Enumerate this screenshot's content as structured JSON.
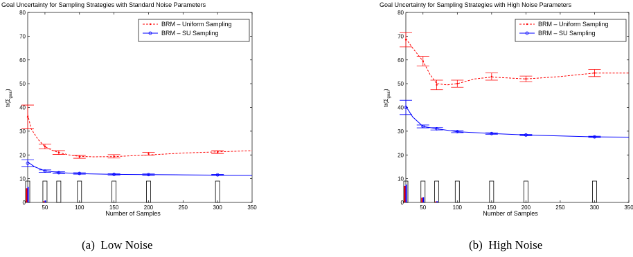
{
  "captions": [
    "(a)  Low Noise",
    "(b)  High Noise"
  ],
  "chart_data": [
    {
      "type": "line",
      "title": "Goal Uncertainty for Sampling Strategies with Standard Noise Parameters",
      "xlabel": "Number of Samples",
      "ylabel": "tr(Σ_goal)",
      "xlim": [
        25,
        350
      ],
      "ylim": [
        0,
        80
      ],
      "xticks": [
        50,
        100,
        150,
        200,
        250,
        300,
        350
      ],
      "yticks": [
        0,
        10,
        20,
        30,
        40,
        50,
        60,
        70,
        80
      ],
      "grid": false,
      "legend_position": "top-right",
      "series": [
        {
          "name": "BRM – Uniform Sampling",
          "color": "#ff0000",
          "style": "dashed",
          "points": [
            {
              "x": 25,
              "y": 36,
              "err": 5
            },
            {
              "x": 50,
              "y": 23.5,
              "err": 1
            },
            {
              "x": 70,
              "y": 21,
              "err": 0.8
            },
            {
              "x": 100,
              "y": 19.2,
              "err": 0.6
            },
            {
              "x": 150,
              "y": 19.4,
              "err": 0.7
            },
            {
              "x": 200,
              "y": 20.5,
              "err": 0.6
            },
            {
              "x": 300,
              "y": 21.2,
              "err": 0.6
            }
          ],
          "fit": [
            [
              25,
              37
            ],
            [
              30,
              31
            ],
            [
              40,
              26.5
            ],
            [
              50,
              23.5
            ],
            [
              60,
              22
            ],
            [
              70,
              21
            ],
            [
              85,
              20
            ],
            [
              100,
              19.4
            ],
            [
              120,
              19.2
            ],
            [
              150,
              19.3
            ],
            [
              200,
              20
            ],
            [
              250,
              20.8
            ],
            [
              300,
              21.3
            ],
            [
              350,
              21.8
            ]
          ]
        },
        {
          "name": "BRM – SU Sampling",
          "color": "#0000ff",
          "style": "solid",
          "points": [
            {
              "x": 25,
              "y": 16.5,
              "err": 1.5
            },
            {
              "x": 50,
              "y": 13.2,
              "err": 0.5
            },
            {
              "x": 70,
              "y": 12.5,
              "err": 0.4
            },
            {
              "x": 100,
              "y": 12.2,
              "err": 0.3
            },
            {
              "x": 150,
              "y": 11.8,
              "err": 0.3
            },
            {
              "x": 200,
              "y": 11.7,
              "err": 0.3
            },
            {
              "x": 300,
              "y": 11.6,
              "err": 0.2
            }
          ],
          "fit": [
            [
              25,
              17
            ],
            [
              35,
              15
            ],
            [
              50,
              13.3
            ],
            [
              70,
              12.6
            ],
            [
              100,
              12.1
            ],
            [
              150,
              11.8
            ],
            [
              200,
              11.7
            ],
            [
              250,
              11.6
            ],
            [
              300,
              11.5
            ],
            [
              350,
              11.4
            ]
          ]
        }
      ],
      "bars": [
        {
          "x": 25,
          "height": 9,
          "red": 6,
          "blue": 6.5
        },
        {
          "x": 50,
          "height": 9,
          "red": 0.5,
          "blue": 0.8
        },
        {
          "x": 70,
          "height": 9,
          "red": 0,
          "blue": 0
        },
        {
          "x": 100,
          "height": 9,
          "red": 0,
          "blue": 0
        },
        {
          "x": 150,
          "height": 9,
          "red": 0,
          "blue": 0
        },
        {
          "x": 200,
          "height": 9,
          "red": 0,
          "blue": 0
        },
        {
          "x": 300,
          "height": 9,
          "red": 0,
          "blue": 0
        }
      ]
    },
    {
      "type": "line",
      "title": "Goal Uncertainty for Sampling Strategies with High Noise Parameters",
      "xlabel": "Number of Samples",
      "ylabel": "tr(Σ_goal)",
      "xlim": [
        25,
        350
      ],
      "ylim": [
        0,
        80
      ],
      "xticks": [
        50,
        100,
        150,
        200,
        250,
        300,
        350
      ],
      "yticks": [
        0,
        10,
        20,
        30,
        40,
        50,
        60,
        70,
        80
      ],
      "grid": false,
      "legend_position": "top-right",
      "series": [
        {
          "name": "BRM – Uniform Sampling",
          "color": "#ff0000",
          "style": "dashed",
          "points": [
            {
              "x": 25,
              "y": 68.5,
              "err": 3
            },
            {
              "x": 50,
              "y": 59.5,
              "err": 2
            },
            {
              "x": 70,
              "y": 49.5,
              "err": 2
            },
            {
              "x": 100,
              "y": 50,
              "err": 1.5
            },
            {
              "x": 150,
              "y": 53,
              "err": 1.5
            },
            {
              "x": 200,
              "y": 52,
              "err": 1.2
            },
            {
              "x": 300,
              "y": 54.5,
              "err": 1.5
            }
          ],
          "fit": [
            [
              25,
              69
            ],
            [
              35,
              65
            ],
            [
              50,
              59.5
            ],
            [
              60,
              54
            ],
            [
              70,
              50
            ],
            [
              85,
              49.5
            ],
            [
              100,
              50
            ],
            [
              125,
              52
            ],
            [
              150,
              52.8
            ],
            [
              175,
              52.4
            ],
            [
              200,
              52
            ],
            [
              250,
              53
            ],
            [
              300,
              54.5
            ],
            [
              350,
              54.5
            ]
          ]
        },
        {
          "name": "BRM – SU Sampling",
          "color": "#0000ff",
          "style": "solid",
          "points": [
            {
              "x": 25,
              "y": 40,
              "err": 3
            },
            {
              "x": 50,
              "y": 32,
              "err": 0.6
            },
            {
              "x": 70,
              "y": 31,
              "err": 0.5
            },
            {
              "x": 100,
              "y": 29.8,
              "err": 0.4
            },
            {
              "x": 150,
              "y": 29,
              "err": 0.3
            },
            {
              "x": 200,
              "y": 28.4,
              "err": 0.3
            },
            {
              "x": 300,
              "y": 27.6,
              "err": 0.3
            }
          ],
          "fit": [
            [
              25,
              40.5
            ],
            [
              35,
              36
            ],
            [
              50,
              32
            ],
            [
              70,
              31
            ],
            [
              100,
              29.8
            ],
            [
              150,
              29
            ],
            [
              200,
              28.4
            ],
            [
              250,
              28
            ],
            [
              300,
              27.6
            ],
            [
              350,
              27.5
            ]
          ]
        }
      ],
      "bars": [
        {
          "x": 25,
          "height": 9,
          "red": 7,
          "blue": 7.5
        },
        {
          "x": 50,
          "height": 9,
          "red": 2,
          "blue": 2.2
        },
        {
          "x": 70,
          "height": 9,
          "red": 0.4,
          "blue": 0.5
        },
        {
          "x": 100,
          "height": 9,
          "red": 0,
          "blue": 0
        },
        {
          "x": 150,
          "height": 9,
          "red": 0,
          "blue": 0
        },
        {
          "x": 200,
          "height": 9,
          "red": 0,
          "blue": 0
        },
        {
          "x": 300,
          "height": 9,
          "red": 0,
          "blue": 0
        }
      ]
    }
  ]
}
